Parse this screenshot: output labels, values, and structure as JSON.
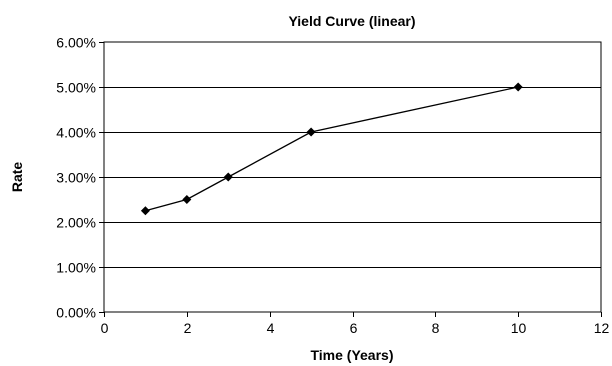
{
  "chart_data": {
    "type": "line",
    "title": "Yield Curve (linear)",
    "xlabel": "Time (Years)",
    "ylabel": "Rate",
    "xlim": [
      0,
      12
    ],
    "ylim": [
      0,
      0.06
    ],
    "x_ticks": [
      0,
      2,
      4,
      6,
      8,
      10,
      12
    ],
    "x_tick_labels": [
      "0",
      "2",
      "4",
      "6",
      "8",
      "10",
      "12"
    ],
    "y_ticks": [
      0,
      0.01,
      0.02,
      0.03,
      0.04,
      0.05,
      0.06
    ],
    "y_tick_labels": [
      "0.00%",
      "1.00%",
      "2.00%",
      "3.00%",
      "4.00%",
      "5.00%",
      "6.00%"
    ],
    "grid": "horizontal",
    "legend": "none",
    "series": [
      {
        "x": [
          1,
          2,
          3,
          5,
          10
        ],
        "values": [
          0.0225,
          0.025,
          0.03,
          0.04,
          0.05
        ],
        "marker": "diamond",
        "color": "#000000"
      }
    ]
  }
}
